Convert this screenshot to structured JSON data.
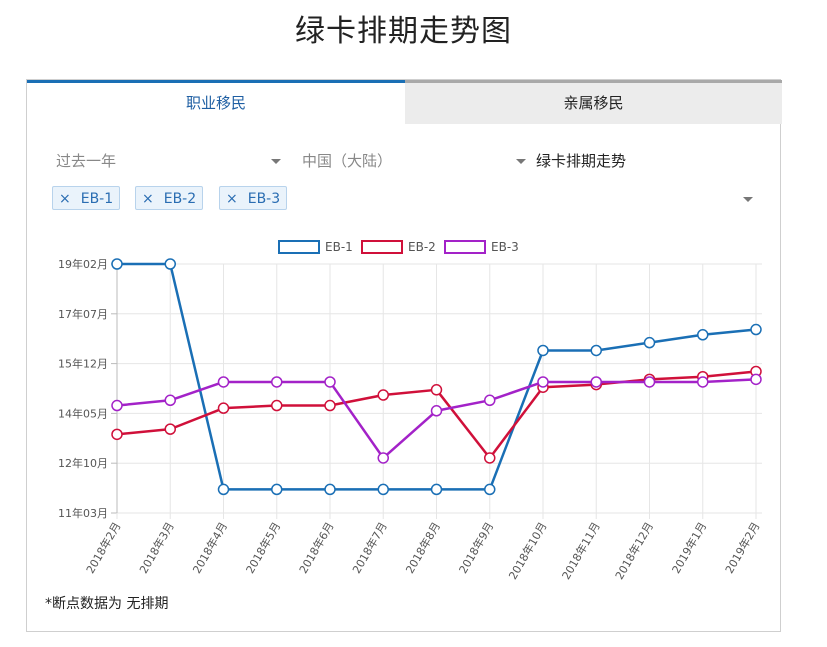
{
  "page_title": "绿卡排期走势图",
  "tabs": [
    {
      "label": "职业移民",
      "active": true
    },
    {
      "label": "亲属移民",
      "active": false
    }
  ],
  "filters": {
    "period": "过去一年",
    "country": "中国（大陆）",
    "chart_type": "绿卡排期走势"
  },
  "selected_tags": [
    {
      "remove": "×",
      "label": "EB-1"
    },
    {
      "remove": "×",
      "label": "EB-2"
    },
    {
      "remove": "×",
      "label": "EB-3"
    }
  ],
  "footnote": "*断点数据为 无排期",
  "chart_data": {
    "type": "line",
    "title": "",
    "xlabel": "",
    "ylabel": "",
    "categories": [
      "2018年2月",
      "2018年3月",
      "2018年4月",
      "2018年5月",
      "2018年6月",
      "2018年7月",
      "2018年8月",
      "2018年9月",
      "2018年10月",
      "2018年11月",
      "2018年12月",
      "2019年1月",
      "2019年2月"
    ],
    "y_ticks": [
      "19年02月",
      "17年07月",
      "15年12月",
      "14年05月",
      "12年10月",
      "11年03月"
    ],
    "y_unit": "months since 2011年03月",
    "ylim": [
      0,
      95
    ],
    "grid": true,
    "legend_position": "top-center",
    "series": [
      {
        "name": "EB-1",
        "color": "#1a6fb5",
        "values": [
          95,
          95,
          9,
          9,
          9,
          9,
          9,
          9,
          62,
          62,
          65,
          68,
          70
        ]
      },
      {
        "name": "EB-2",
        "color": "#d0103a",
        "values": [
          30,
          32,
          40,
          41,
          41,
          45,
          47,
          21,
          48,
          49,
          51,
          52,
          54
        ]
      },
      {
        "name": "EB-3",
        "color": "#a322c8",
        "values": [
          41,
          43,
          50,
          50,
          50,
          21,
          39,
          43,
          50,
          50,
          50,
          50,
          51
        ]
      }
    ]
  }
}
